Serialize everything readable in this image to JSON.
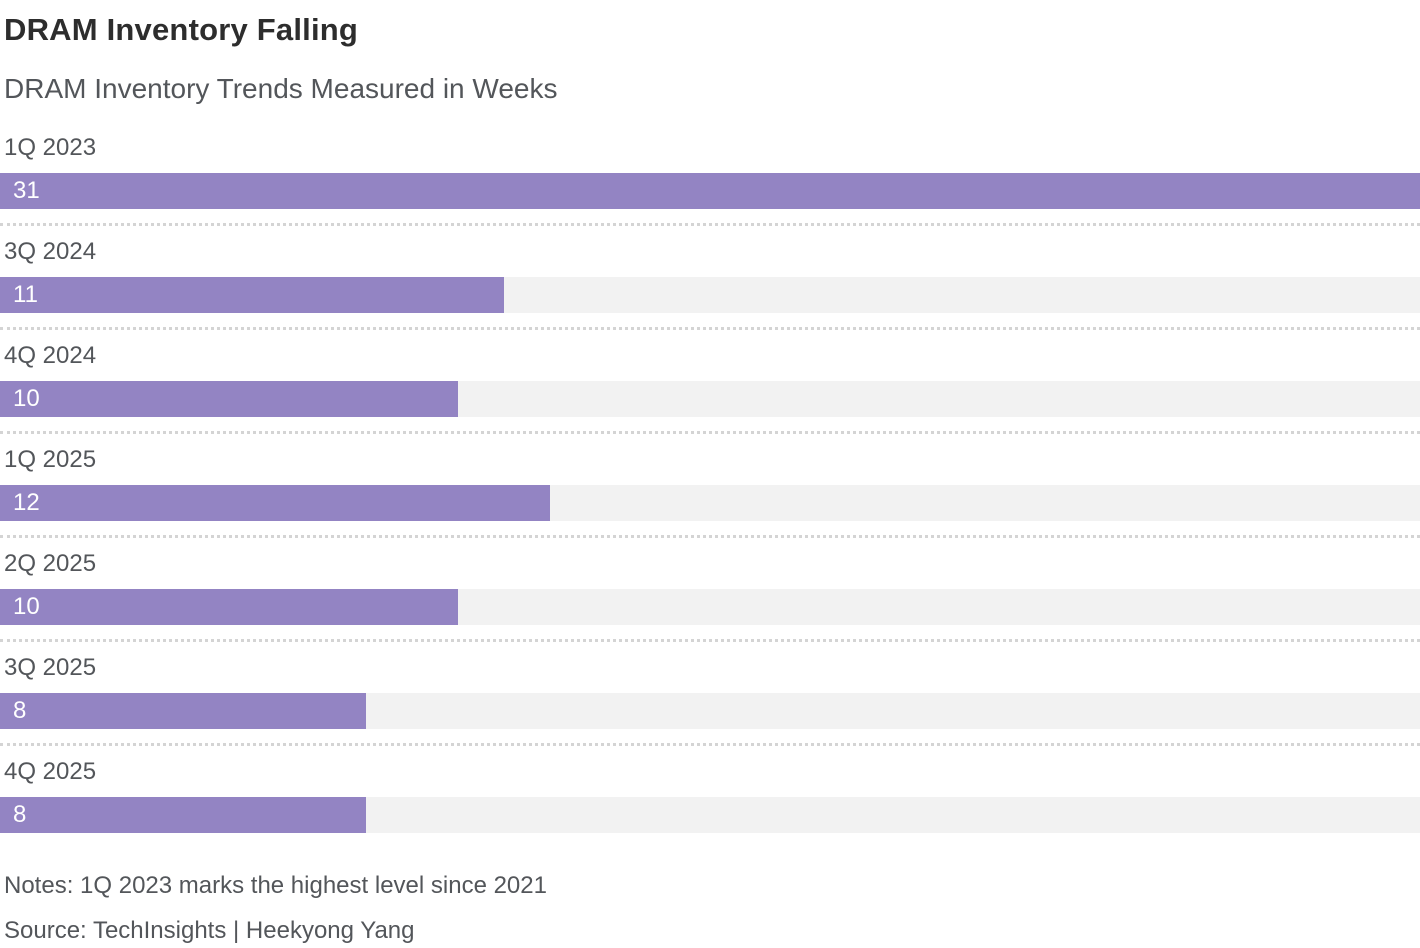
{
  "header": {
    "title": "DRAM Inventory Falling",
    "subtitle": "DRAM Inventory Trends Measured in Weeks"
  },
  "chart_data": {
    "type": "bar",
    "orientation": "horizontal",
    "categories": [
      "1Q 2023",
      "3Q 2024",
      "4Q 2024",
      "1Q 2025",
      "2Q 2025",
      "3Q 2025",
      "4Q 2025"
    ],
    "values": [
      31,
      11,
      10,
      12,
      10,
      8,
      8
    ],
    "title": "DRAM Inventory Falling",
    "subtitle": "DRAM Inventory Trends Measured in Weeks",
    "xlabel": "",
    "ylabel": "",
    "xlim": [
      0,
      31
    ],
    "unit": "weeks",
    "value_labels_shown": true,
    "grid": false,
    "legend": false,
    "bar_color": "#9384c3",
    "track_color": "#f2f2f2",
    "separator_style": "dotted"
  },
  "footer": {
    "notes": "Notes: 1Q 2023 marks the highest level since 2021",
    "source": "Source: TechInsights | Heekyong Yang"
  }
}
